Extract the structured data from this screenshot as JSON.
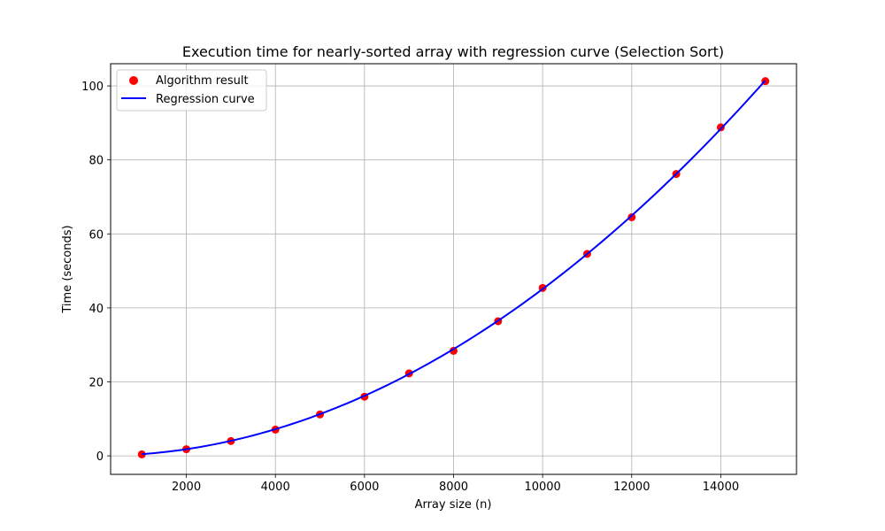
{
  "chart_data": {
    "type": "scatter",
    "title": "Execution time for nearly-sorted array with regression curve (Selection Sort)",
    "xlabel": "Array size (n)",
    "ylabel": "Time (seconds)",
    "xlim": [
      300,
      15700
    ],
    "ylim": [
      -5,
      106
    ],
    "xticks": [
      2000,
      4000,
      6000,
      8000,
      10000,
      12000,
      14000
    ],
    "yticks": [
      0,
      20,
      40,
      60,
      80,
      100
    ],
    "grid": true,
    "legend_position": "top-left",
    "series": [
      {
        "name": "Algorithm result",
        "kind": "scatter",
        "color": "#ff0000",
        "x": [
          1000,
          2000,
          3000,
          4000,
          5000,
          6000,
          7000,
          8000,
          9000,
          10000,
          11000,
          12000,
          13000,
          14000,
          15000
        ],
        "y": [
          0.4,
          1.8,
          4.0,
          7.1,
          11.2,
          16.0,
          22.3,
          28.4,
          36.4,
          45.4,
          54.6,
          64.5,
          76.2,
          88.8,
          101.3
        ]
      },
      {
        "name": "Regression curve",
        "kind": "line",
        "color": "#0000ff",
        "model": "quadratic",
        "coefficients": {
          "a": 4.51e-07,
          "b": 0,
          "c": 0
        },
        "x_range": [
          1000,
          15000
        ]
      }
    ]
  }
}
